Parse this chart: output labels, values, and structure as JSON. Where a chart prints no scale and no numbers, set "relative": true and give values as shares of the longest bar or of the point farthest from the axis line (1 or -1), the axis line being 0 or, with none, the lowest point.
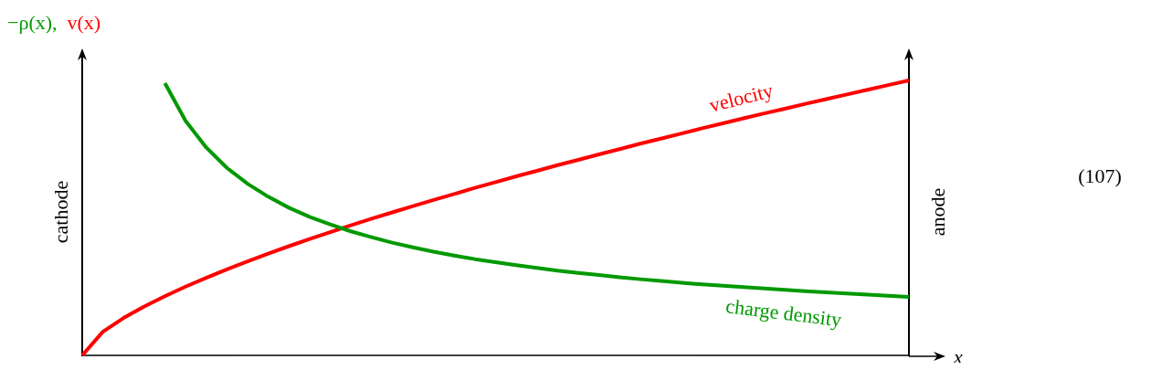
{
  "chart_data": {
    "type": "line",
    "relative": true,
    "ylabel": "−ρ(x),  v(x)",
    "xlabel": "x",
    "categories": [
      null,
      null,
      null,
      null,
      null,
      null,
      null,
      null,
      null,
      null,
      null,
      null,
      null,
      null,
      null,
      null,
      null,
      null,
      null,
      null,
      null,
      null,
      null,
      null,
      null,
      null,
      null,
      null,
      null,
      null,
      null,
      null,
      null,
      null,
      null,
      null,
      null,
      null,
      null,
      null,
      null
    ],
    "series": [
      {
        "name": "velocity",
        "color": "#ff0000",
        "values": [
          0,
          0.086,
          0.136,
          0.178,
          0.215,
          0.25,
          0.282,
          0.313,
          0.342,
          0.37,
          0.397,
          0.423,
          0.448,
          0.473,
          0.497,
          0.52,
          0.543,
          0.565,
          0.587,
          0.609,
          0.63,
          0.651,
          0.671,
          0.692,
          0.711,
          0.731,
          0.75,
          0.77,
          0.788,
          0.807,
          0.826,
          0.844,
          0.862,
          0.88,
          0.897,
          0.915,
          0.932,
          0.949,
          0.966,
          0.983,
          1
        ]
      },
      {
        "name": "charge density",
        "color": "#009900",
        "values": [
          null,
          null,
          null,
          null,
          0.99,
          0.853,
          0.756,
          0.682,
          0.624,
          0.577,
          0.537,
          0.504,
          0.476,
          0.451,
          0.43,
          0.41,
          0.393,
          0.377,
          0.363,
          0.35,
          0.339,
          0.328,
          0.318,
          0.308,
          0.3,
          0.292,
          0.284,
          0.277,
          0.271,
          0.264,
          0.258,
          0.253,
          0.248,
          0.243,
          0.238,
          0.233,
          0.229,
          0.225,
          0.221,
          0.217,
          0.213
        ]
      }
    ],
    "annotations": [
      "cathode",
      "anode",
      "(107)"
    ],
    "grid": false,
    "legend": false,
    "marker": "none",
    "line_style": "solid"
  }
}
